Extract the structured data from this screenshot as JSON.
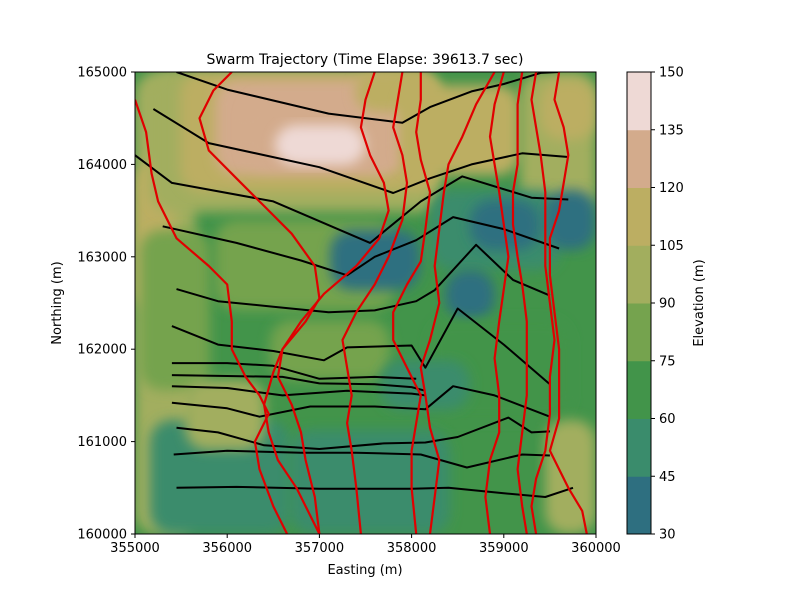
{
  "chart_data": {
    "type": "contour",
    "title": "Swarm Trajectory (Time Elapse: 39613.7 sec)",
    "xlabel": "Easting (m)",
    "ylabel": "Northing (m)",
    "xlim": [
      355000,
      360000
    ],
    "ylim": [
      160000,
      165000
    ],
    "xticks": [
      355000,
      356000,
      357000,
      358000,
      359000,
      360000
    ],
    "yticks": [
      160000,
      161000,
      162000,
      163000,
      164000,
      165000
    ],
    "colorbar": {
      "label": "Elevation (m)",
      "ticks": [
        30,
        45,
        60,
        75,
        90,
        105,
        120,
        135,
        150
      ],
      "levels": [
        30,
        45,
        60,
        75,
        90,
        105,
        120,
        135,
        150
      ],
      "colors": [
        "#2e6f80",
        "#3a8c6c",
        "#42944a",
        "#75a34e",
        "#a2ae5e",
        "#bcae62",
        "#d3ab8c",
        "#eed9d5"
      ]
    },
    "swarm_lines": [
      [
        [
          355450,
          160500
        ],
        [
          356100,
          160510
        ],
        [
          357000,
          160490
        ],
        [
          358000,
          160490
        ],
        [
          358400,
          160500
        ],
        [
          359000,
          160440
        ],
        [
          359450,
          160400
        ],
        [
          359750,
          160500
        ]
      ],
      [
        [
          355420,
          160860
        ],
        [
          356000,
          160900
        ],
        [
          356800,
          160880
        ],
        [
          357400,
          160880
        ],
        [
          358100,
          160860
        ],
        [
          358600,
          160720
        ],
        [
          359200,
          160860
        ],
        [
          359500,
          160850
        ]
      ],
      [
        [
          355450,
          161150
        ],
        [
          355900,
          161100
        ],
        [
          356400,
          160960
        ],
        [
          357000,
          160920
        ],
        [
          357700,
          160980
        ],
        [
          358150,
          160990
        ],
        [
          358500,
          161050
        ],
        [
          359050,
          161260
        ],
        [
          359300,
          161100
        ],
        [
          359500,
          161110
        ]
      ],
      [
        [
          355400,
          161420
        ],
        [
          356000,
          161360
        ],
        [
          356350,
          161270
        ],
        [
          356900,
          161380
        ],
        [
          357600,
          161380
        ],
        [
          358150,
          161350
        ],
        [
          358450,
          161600
        ],
        [
          358900,
          161500
        ],
        [
          359500,
          161270
        ]
      ],
      [
        [
          355400,
          161600
        ],
        [
          356000,
          161580
        ],
        [
          356600,
          161500
        ],
        [
          357300,
          161550
        ],
        [
          358000,
          161520
        ],
        [
          358150,
          161500
        ]
      ],
      [
        [
          355400,
          161720
        ],
        [
          356000,
          161710
        ],
        [
          356600,
          161700
        ],
        [
          357000,
          161630
        ],
        [
          357600,
          161620
        ],
        [
          358000,
          161590
        ],
        [
          358150,
          161550
        ]
      ],
      [
        [
          355400,
          161850
        ],
        [
          356000,
          161850
        ],
        [
          356500,
          161820
        ],
        [
          357000,
          161680
        ],
        [
          357600,
          161700
        ],
        [
          358050,
          161680
        ]
      ],
      [
        [
          355400,
          162250
        ],
        [
          355900,
          162050
        ],
        [
          356500,
          161980
        ],
        [
          357050,
          161880
        ],
        [
          357300,
          162020
        ],
        [
          358000,
          162040
        ],
        [
          358150,
          161800
        ],
        [
          358500,
          162440
        ],
        [
          359000,
          162050
        ],
        [
          359500,
          161620
        ]
      ],
      [
        [
          355450,
          162650
        ],
        [
          355900,
          162520
        ],
        [
          356500,
          162460
        ],
        [
          357100,
          162400
        ],
        [
          357600,
          162420
        ],
        [
          358050,
          162520
        ],
        [
          358250,
          162640
        ],
        [
          358700,
          163130
        ],
        [
          359100,
          162750
        ],
        [
          359500,
          162580
        ]
      ],
      [
        [
          355300,
          163330
        ],
        [
          356100,
          163150
        ],
        [
          356800,
          162960
        ],
        [
          357300,
          162800
        ],
        [
          357600,
          163000
        ],
        [
          358050,
          163180
        ],
        [
          358450,
          163430
        ],
        [
          359000,
          163300
        ],
        [
          359600,
          163090
        ]
      ],
      [
        [
          355000,
          164100
        ],
        [
          355400,
          163800
        ],
        [
          356500,
          163600
        ],
        [
          357550,
          163150
        ],
        [
          358100,
          163600
        ],
        [
          358550,
          163870
        ],
        [
          359300,
          163640
        ],
        [
          359700,
          163620
        ]
      ],
      [
        [
          355200,
          164600
        ],
        [
          355800,
          164230
        ],
        [
          357000,
          163970
        ],
        [
          357800,
          163690
        ],
        [
          358200,
          163850
        ],
        [
          358650,
          164000
        ],
        [
          359200,
          164120
        ],
        [
          359700,
          164080
        ]
      ],
      [
        [
          355450,
          165000
        ],
        [
          356000,
          164810
        ],
        [
          357100,
          164550
        ],
        [
          357900,
          164450
        ],
        [
          358200,
          164620
        ],
        [
          358650,
          164790
        ],
        [
          359000,
          164870
        ],
        [
          359400,
          164990
        ],
        [
          359600,
          165000
        ]
      ]
    ],
    "front_lines": [
      [
        [
          355000,
          164700
        ],
        [
          355120,
          164350
        ],
        [
          355180,
          163900
        ],
        [
          355250,
          163600
        ],
        [
          355450,
          163200
        ],
        [
          355800,
          162900
        ],
        [
          356000,
          162700
        ],
        [
          356050,
          162300
        ],
        [
          356050,
          162000
        ],
        [
          356200,
          161700
        ],
        [
          356350,
          161500
        ],
        [
          356450,
          161300
        ],
        [
          356300,
          161000
        ],
        [
          356350,
          160700
        ],
        [
          356500,
          160300
        ],
        [
          356650,
          160000
        ]
      ],
      [
        [
          356050,
          165000
        ],
        [
          355850,
          164800
        ],
        [
          355700,
          164500
        ],
        [
          355800,
          164150
        ],
        [
          356100,
          163850
        ],
        [
          356400,
          163550
        ],
        [
          356700,
          163250
        ],
        [
          356950,
          162900
        ],
        [
          357000,
          162550
        ],
        [
          356850,
          162300
        ],
        [
          356600,
          162000
        ],
        [
          356500,
          161750
        ],
        [
          356400,
          161400
        ],
        [
          356450,
          161100
        ],
        [
          356550,
          160800
        ],
        [
          356750,
          160500
        ],
        [
          356900,
          160200
        ],
        [
          357000,
          160000
        ]
      ],
      [
        [
          357600,
          165000
        ],
        [
          357500,
          164700
        ],
        [
          357450,
          164400
        ],
        [
          357550,
          164100
        ],
        [
          357700,
          163800
        ],
        [
          357750,
          163500
        ],
        [
          357650,
          163200
        ],
        [
          357400,
          162900
        ],
        [
          357050,
          162600
        ],
        [
          356800,
          162300
        ],
        [
          356600,
          162000
        ],
        [
          356550,
          161700
        ],
        [
          356700,
          161400
        ],
        [
          356800,
          161100
        ],
        [
          356850,
          160800
        ],
        [
          356950,
          160400
        ],
        [
          357000,
          160000
        ]
      ],
      [
        [
          357900,
          165000
        ],
        [
          357850,
          164700
        ],
        [
          357800,
          164400
        ],
        [
          357900,
          164100
        ],
        [
          357950,
          163800
        ],
        [
          357900,
          163400
        ],
        [
          357750,
          163000
        ],
        [
          357600,
          162700
        ],
        [
          357400,
          162400
        ],
        [
          357250,
          162100
        ],
        [
          357300,
          161800
        ],
        [
          357350,
          161500
        ],
        [
          357300,
          161200
        ],
        [
          357350,
          160900
        ],
        [
          357400,
          160500
        ],
        [
          357450,
          160000
        ]
      ],
      [
        [
          358100,
          165000
        ],
        [
          358100,
          164700
        ],
        [
          358050,
          164350
        ],
        [
          358100,
          164050
        ],
        [
          358200,
          163700
        ],
        [
          358150,
          163300
        ],
        [
          358100,
          162950
        ],
        [
          357950,
          162700
        ],
        [
          357800,
          162400
        ],
        [
          357800,
          162100
        ],
        [
          357950,
          161800
        ],
        [
          358100,
          161500
        ],
        [
          358050,
          161200
        ],
        [
          358000,
          160900
        ],
        [
          358000,
          160500
        ],
        [
          358050,
          160000
        ]
      ],
      [
        [
          358900,
          165000
        ],
        [
          358700,
          164650
        ],
        [
          358550,
          164300
        ],
        [
          358400,
          164000
        ],
        [
          358350,
          163700
        ],
        [
          358300,
          163300
        ],
        [
          358250,
          162900
        ],
        [
          358300,
          162500
        ],
        [
          358200,
          162100
        ],
        [
          358100,
          161800
        ],
        [
          358150,
          161500
        ],
        [
          358200,
          161150
        ],
        [
          358300,
          160800
        ],
        [
          358250,
          160400
        ],
        [
          358200,
          160000
        ]
      ],
      [
        [
          359000,
          165000
        ],
        [
          358900,
          164650
        ],
        [
          358850,
          164300
        ],
        [
          358900,
          164000
        ],
        [
          358950,
          163700
        ],
        [
          359000,
          163350
        ],
        [
          359050,
          163000
        ],
        [
          359000,
          162650
        ],
        [
          358950,
          162300
        ],
        [
          358900,
          161900
        ],
        [
          358950,
          161500
        ],
        [
          358950,
          161100
        ],
        [
          358850,
          160800
        ],
        [
          358800,
          160400
        ],
        [
          358850,
          160000
        ]
      ],
      [
        [
          359200,
          165000
        ],
        [
          359150,
          164650
        ],
        [
          359150,
          164300
        ],
        [
          359150,
          164000
        ],
        [
          359100,
          163700
        ],
        [
          359100,
          163350
        ],
        [
          359150,
          163000
        ],
        [
          359200,
          162700
        ],
        [
          359250,
          162300
        ],
        [
          359250,
          161900
        ],
        [
          359250,
          161500
        ],
        [
          359200,
          161100
        ],
        [
          359150,
          160700
        ],
        [
          359200,
          160300
        ],
        [
          359250,
          160000
        ]
      ],
      [
        [
          359350,
          165000
        ],
        [
          359300,
          164700
        ],
        [
          359350,
          164400
        ],
        [
          359400,
          164100
        ],
        [
          359450,
          163700
        ],
        [
          359450,
          163300
        ],
        [
          359450,
          162900
        ],
        [
          359500,
          162500
        ],
        [
          359550,
          162100
        ],
        [
          359500,
          161700
        ],
        [
          359500,
          161300
        ],
        [
          359450,
          160900
        ],
        [
          359350,
          160600
        ],
        [
          359300,
          160300
        ],
        [
          359350,
          160000
        ]
      ],
      [
        [
          359600,
          165000
        ],
        [
          359550,
          164700
        ],
        [
          359650,
          164400
        ],
        [
          359700,
          164100
        ],
        [
          359650,
          163800
        ],
        [
          359600,
          163500
        ],
        [
          359500,
          163200
        ],
        [
          359500,
          162800
        ],
        [
          359550,
          162400
        ],
        [
          359600,
          162000
        ],
        [
          359600,
          161600
        ],
        [
          359600,
          161250
        ],
        [
          359500,
          160900
        ],
        [
          359700,
          160500
        ],
        [
          359850,
          160250
        ],
        [
          359900,
          160000
        ]
      ]
    ]
  }
}
